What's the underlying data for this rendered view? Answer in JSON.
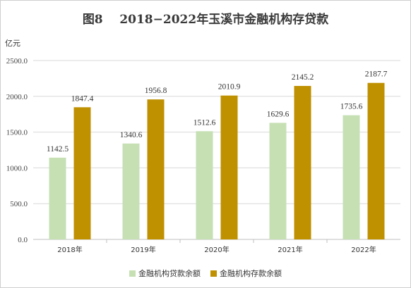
{
  "colors": {
    "loan": "#c6e0b4",
    "deposit": "#bf9000",
    "grid": "#d9d9d9",
    "axis": "#bfbfbf"
  },
  "chart_data": {
    "type": "bar",
    "title": "图8    2018−2022年玉溪市金融机构存贷款",
    "unit": "亿元",
    "categories": [
      "2018年",
      "2019年",
      "2020年",
      "2021年",
      "2022年"
    ],
    "series": [
      {
        "name": "金融机构贷款余额",
        "values": [
          1142.5,
          1340.6,
          1512.6,
          1629.6,
          1735.6
        ],
        "labels": [
          "1142.5",
          "1340.6",
          "1512.6",
          "1629.6",
          "1735.6"
        ]
      },
      {
        "name": "金融机构存款余额",
        "values": [
          1847.4,
          1956.8,
          2010.9,
          2145.2,
          2187.7
        ],
        "labels": [
          "1847.4",
          "1956.8",
          "2010.9",
          "2145.2",
          "2187.7"
        ]
      }
    ],
    "yticks": [
      "0.0",
      "500.0",
      "1000.0",
      "1500.0",
      "2000.0",
      "2500.0"
    ],
    "ylim": [
      0,
      2500
    ],
    "grid": true,
    "legend_position": "bottom"
  }
}
